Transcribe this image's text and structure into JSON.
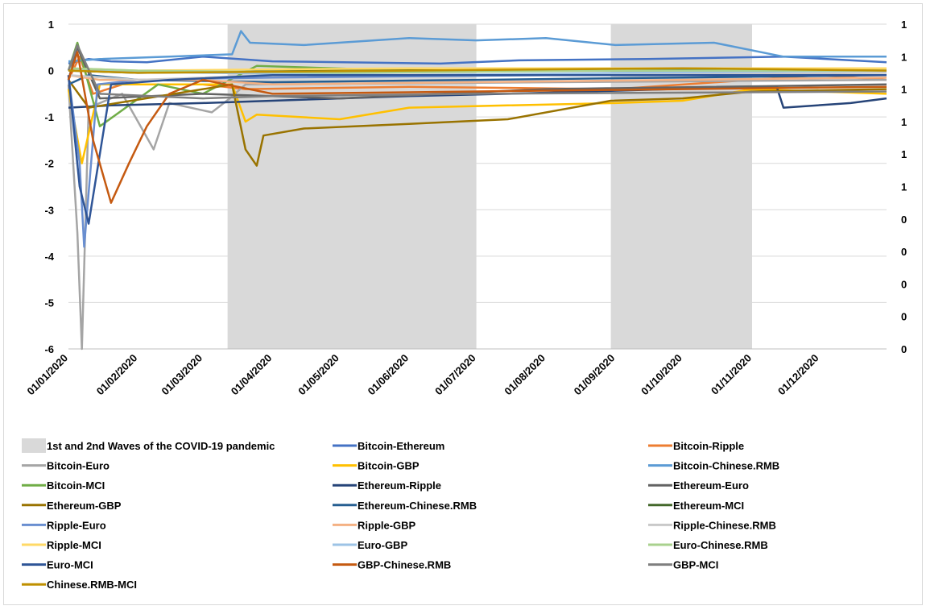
{
  "chart_data": {
    "type": "line",
    "title": "",
    "ylim": [
      -6,
      1
    ],
    "yticks": [
      "1",
      "0",
      "-1",
      "-2",
      "-3",
      "-4",
      "-5",
      "-6"
    ],
    "y2_ticks": [
      "1",
      "1",
      "1",
      "1",
      "1",
      "1",
      "0",
      "0",
      "0",
      "0",
      "0"
    ],
    "x_tick_labels": [
      "01/01/2020",
      "01/02/2020",
      "01/03/2020",
      "01/04/2020",
      "01/05/2020",
      "01/06/2020",
      "01/07/2020",
      "01/08/2020",
      "01/09/2020",
      "01/10/2020",
      "01/11/2020",
      "01/12/2020"
    ],
    "x_range": [
      "2020-01-01",
      "2020-12-31"
    ],
    "grid": "horizontal",
    "legend_position": "bottom",
    "shaded_periods": {
      "name": "1st and 2nd Waves of the COVID-19 pandemic",
      "color": "#d9d9d9",
      "ranges": [
        [
          "2020-03-12",
          "2020-07-01"
        ],
        [
          "2020-08-30",
          "2020-11-01"
        ]
      ]
    },
    "series": [
      {
        "name": "Bitcoin-Ethereum",
        "color": "#4472c4",
        "x": [
          "2020-01-01",
          "2020-01-10",
          "2020-01-20",
          "2020-02-05",
          "2020-03-01",
          "2020-04-01",
          "2020-06-15",
          "2020-07-20",
          "2020-09-15",
          "2020-11-15",
          "2020-12-31"
        ],
        "values": [
          0.15,
          0.25,
          0.2,
          0.18,
          0.3,
          0.2,
          0.15,
          0.22,
          0.25,
          0.3,
          0.18
        ]
      },
      {
        "name": "Bitcoin-Ripple",
        "color": "#ed7d31",
        "x": [
          "2020-01-01",
          "2020-01-06",
          "2020-01-12",
          "2020-01-25",
          "2020-03-01",
          "2020-03-20",
          "2020-06-01",
          "2020-09-01",
          "2020-12-01",
          "2020-12-31"
        ],
        "values": [
          -0.2,
          0.3,
          -0.5,
          -0.3,
          -0.3,
          -0.4,
          -0.35,
          -0.4,
          -0.1,
          -0.2
        ]
      },
      {
        "name": "Bitcoin-Euro",
        "color": "#a5a5a5",
        "x": [
          "2020-01-01",
          "2020-01-05",
          "2020-01-07",
          "2020-01-10",
          "2020-01-25",
          "2020-02-08",
          "2020-02-15",
          "2020-03-05",
          "2020-03-13",
          "2020-03-20",
          "2020-12-31"
        ],
        "values": [
          -0.3,
          -3.5,
          -6.0,
          -0.8,
          -0.5,
          -1.7,
          -0.7,
          -0.9,
          -0.6,
          -0.3,
          -0.2
        ]
      },
      {
        "name": "Bitcoin-GBP",
        "color": "#ffc000",
        "x": [
          "2020-01-01",
          "2020-01-07",
          "2020-01-15",
          "2020-03-14",
          "2020-03-20",
          "2020-03-25",
          "2020-05-01",
          "2020-06-01",
          "2020-07-15",
          "2020-09-01",
          "2020-10-01",
          "2020-11-01",
          "2020-12-31"
        ],
        "values": [
          -0.4,
          -2.0,
          -0.3,
          -0.3,
          -1.1,
          -0.95,
          -1.05,
          -0.8,
          -0.75,
          -0.7,
          -0.65,
          -0.4,
          -0.5
        ]
      },
      {
        "name": "Bitcoin-Chinese.RMB",
        "color": "#5b9bd5",
        "x": [
          "2020-01-01",
          "2020-01-15",
          "2020-02-15",
          "2020-03-14",
          "2020-03-18",
          "2020-03-22",
          "2020-04-15",
          "2020-06-01",
          "2020-07-01",
          "2020-08-01",
          "2020-09-01",
          "2020-10-15",
          "2020-11-15",
          "2020-12-31"
        ],
        "values": [
          0.2,
          0.25,
          0.3,
          0.35,
          0.85,
          0.6,
          0.55,
          0.7,
          0.65,
          0.7,
          0.55,
          0.6,
          0.3,
          0.3
        ]
      },
      {
        "name": "Bitcoin-MCI",
        "color": "#70ad47",
        "x": [
          "2020-01-01",
          "2020-01-05",
          "2020-01-15",
          "2020-02-10",
          "2020-03-01",
          "2020-03-25",
          "2020-06-01",
          "2020-12-31"
        ],
        "values": [
          0.0,
          0.6,
          -1.2,
          -0.3,
          -0.5,
          0.1,
          0.0,
          0.0
        ]
      },
      {
        "name": "Ethereum-Ripple",
        "color": "#264478",
        "x": [
          "2020-01-01",
          "2020-01-20",
          "2020-03-01",
          "2020-04-01",
          "2020-06-01",
          "2020-07-15",
          "2020-11-01",
          "2020-11-12",
          "2020-11-15",
          "2020-12-15",
          "2020-12-31"
        ],
        "values": [
          -0.8,
          -0.75,
          -0.7,
          -0.65,
          -0.55,
          -0.5,
          -0.35,
          -0.35,
          -0.8,
          -0.7,
          -0.6
        ]
      },
      {
        "name": "Ethereum-Euro",
        "color": "#636363",
        "x": [
          "2020-01-01",
          "2020-01-05",
          "2020-01-15",
          "2020-03-01",
          "2020-05-01",
          "2020-08-01",
          "2020-12-31"
        ],
        "values": [
          -0.2,
          0.5,
          -0.6,
          -0.5,
          -0.6,
          -0.4,
          -0.3
        ]
      },
      {
        "name": "Ethereum-GBP",
        "color": "#997300",
        "x": [
          "2020-01-01",
          "2020-01-10",
          "2020-03-14",
          "2020-03-20",
          "2020-03-25",
          "2020-03-28",
          "2020-04-15",
          "2020-06-01",
          "2020-07-15",
          "2020-08-30",
          "2020-10-01",
          "2020-11-01",
          "2020-12-31"
        ],
        "values": [
          -0.2,
          -0.8,
          -0.3,
          -1.7,
          -2.05,
          -1.4,
          -1.25,
          -1.15,
          -1.05,
          -0.65,
          -0.6,
          -0.45,
          -0.4
        ]
      },
      {
        "name": "Ethereum-Chinese.RMB",
        "color": "#255e91",
        "x": [
          "2020-01-01",
          "2020-01-10",
          "2020-02-01",
          "2020-04-01",
          "2020-07-01",
          "2020-10-01",
          "2020-12-31"
        ],
        "values": [
          -0.3,
          -0.1,
          -0.2,
          -0.25,
          -0.2,
          -0.15,
          -0.1
        ]
      },
      {
        "name": "Ethereum-MCI",
        "color": "#43682b",
        "x": [
          "2020-01-01",
          "2020-02-01",
          "2020-05-01",
          "2020-09-01",
          "2020-12-31"
        ],
        "values": [
          0.0,
          -0.05,
          0.0,
          0.02,
          0.0
        ]
      },
      {
        "name": "Ripple-Euro",
        "color": "#698ed0",
        "x": [
          "2020-01-01",
          "2020-01-06",
          "2020-01-08",
          "2020-01-14",
          "2020-02-01",
          "2020-04-01",
          "2020-08-01",
          "2020-12-31"
        ],
        "values": [
          -0.1,
          -2.0,
          -3.8,
          -0.3,
          -0.2,
          -0.15,
          -0.1,
          -0.1
        ]
      },
      {
        "name": "Ripple-GBP",
        "color": "#f4b183",
        "x": [
          "2020-01-01",
          "2020-01-15",
          "2020-03-01",
          "2020-04-01",
          "2020-07-01",
          "2020-10-01",
          "2020-12-31"
        ],
        "values": [
          -0.1,
          -0.2,
          -0.2,
          -0.3,
          -0.25,
          -0.2,
          -0.15
        ]
      },
      {
        "name": "Ripple-Chinese.RMB",
        "color": "#c9c9c9",
        "x": [
          "2020-01-01",
          "2020-02-01",
          "2020-04-01",
          "2020-07-01",
          "2020-12-31"
        ],
        "values": [
          -0.1,
          -0.2,
          -0.1,
          -0.1,
          -0.05
        ]
      },
      {
        "name": "Ripple-MCI",
        "color": "#ffd966",
        "x": [
          "2020-01-01",
          "2020-02-01",
          "2020-06-01",
          "2020-10-01",
          "2020-12-31"
        ],
        "values": [
          0.05,
          0.0,
          0.05,
          0.05,
          0.05
        ]
      },
      {
        "name": "Euro-GBP",
        "color": "#9dc3e6",
        "x": [
          "2020-01-01",
          "2020-03-01",
          "2020-06-01",
          "2020-09-01",
          "2020-12-31"
        ],
        "values": [
          0.0,
          -0.05,
          -0.1,
          -0.05,
          0.0
        ]
      },
      {
        "name": "Euro-Chinese.RMB",
        "color": "#a9d18e",
        "x": [
          "2020-01-01",
          "2020-02-01",
          "2020-05-01",
          "2020-09-01",
          "2020-12-31"
        ],
        "values": [
          0.05,
          0.0,
          -0.05,
          0.0,
          0.0
        ]
      },
      {
        "name": "Euro-MCI",
        "color": "#2f5597",
        "x": [
          "2020-01-01",
          "2020-01-06",
          "2020-01-10",
          "2020-01-20",
          "2020-02-15",
          "2020-04-01",
          "2020-07-01",
          "2020-10-01",
          "2020-12-31"
        ],
        "values": [
          -0.1,
          -2.5,
          -3.3,
          -0.3,
          -0.2,
          -0.1,
          -0.1,
          -0.1,
          -0.1
        ]
      },
      {
        "name": "GBP-Chinese.RMB",
        "color": "#c55a11",
        "x": [
          "2020-01-01",
          "2020-01-05",
          "2020-01-12",
          "2020-01-20",
          "2020-01-28",
          "2020-02-05",
          "2020-02-15",
          "2020-03-01",
          "2020-04-01",
          "2020-07-01",
          "2020-10-01",
          "2020-12-31"
        ],
        "values": [
          -0.2,
          0.4,
          -1.5,
          -2.85,
          -2.0,
          -1.2,
          -0.5,
          -0.2,
          -0.5,
          -0.45,
          -0.4,
          -0.35
        ]
      },
      {
        "name": "GBP-MCI",
        "color": "#7f7f7f",
        "x": [
          "2020-01-01",
          "2020-01-05",
          "2020-01-15",
          "2020-03-01",
          "2020-04-01",
          "2020-07-01",
          "2020-12-31"
        ],
        "values": [
          0.0,
          0.55,
          -0.5,
          -0.6,
          -0.55,
          -0.5,
          -0.45
        ]
      },
      {
        "name": "Chinese.RMB-MCI",
        "color": "#bf9000",
        "x": [
          "2020-01-01",
          "2020-02-01",
          "2020-06-01",
          "2020-10-01",
          "2020-12-31"
        ],
        "values": [
          0.0,
          -0.05,
          0.0,
          0.05,
          0.0
        ]
      }
    ]
  }
}
